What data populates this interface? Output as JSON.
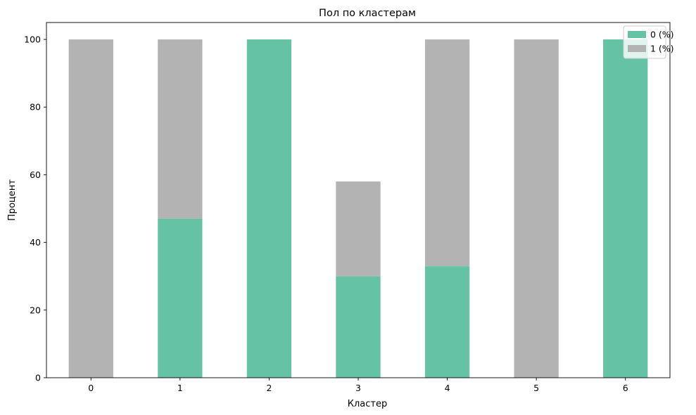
{
  "chart_data": {
    "type": "bar",
    "stacked": true,
    "title": "Пол по кластерам",
    "xlabel": "Кластер",
    "ylabel": "Процент",
    "categories": [
      "0",
      "1",
      "2",
      "3",
      "4",
      "5",
      "6"
    ],
    "series": [
      {
        "name": "0 (%)",
        "color": "#66c2a5",
        "values": [
          0,
          47,
          100,
          30,
          33,
          0,
          100
        ]
      },
      {
        "name": "1 (%)",
        "color": "#b3b3b3",
        "values": [
          100,
          53,
          0,
          28,
          67,
          100,
          0
        ]
      }
    ],
    "ylim": [
      0,
      105
    ],
    "yticks": [
      0,
      20,
      40,
      60,
      80,
      100
    ],
    "grid": false,
    "legend_position": "top-right"
  }
}
